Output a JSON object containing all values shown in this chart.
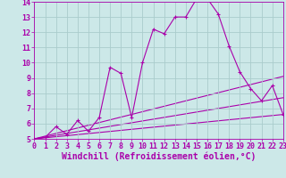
{
  "background_color": "#cce8e8",
  "grid_color": "#aacccc",
  "line_color": "#aa00aa",
  "xlabel": "Windchill (Refroidissement éolien,°C)",
  "xlim": [
    0,
    23
  ],
  "ylim": [
    5,
    14
  ],
  "xticks": [
    0,
    1,
    2,
    3,
    4,
    5,
    6,
    7,
    8,
    9,
    10,
    11,
    12,
    13,
    14,
    15,
    16,
    17,
    18,
    19,
    20,
    21,
    22,
    23
  ],
  "yticks": [
    5,
    6,
    7,
    8,
    9,
    10,
    11,
    12,
    13,
    14
  ],
  "main_series": {
    "x": [
      0,
      1,
      2,
      3,
      4,
      5,
      6,
      7,
      8,
      9,
      10,
      11,
      12,
      13,
      14,
      15,
      16,
      17,
      18,
      19,
      20,
      21,
      22,
      23
    ],
    "y": [
      5.0,
      5.1,
      5.8,
      5.3,
      6.2,
      5.5,
      6.4,
      9.7,
      9.3,
      6.4,
      10.0,
      12.2,
      11.9,
      13.0,
      13.0,
      14.2,
      14.2,
      13.2,
      11.1,
      9.4,
      8.3,
      7.5,
      8.5,
      6.6
    ]
  },
  "ref_lines": [
    {
      "x": [
        0,
        23
      ],
      "y": [
        5.0,
        6.6
      ]
    },
    {
      "x": [
        0,
        23
      ],
      "y": [
        5.0,
        7.7
      ]
    },
    {
      "x": [
        0,
        23
      ],
      "y": [
        5.0,
        9.1
      ]
    }
  ],
  "tick_fontsize": 6,
  "xlabel_fontsize": 7
}
